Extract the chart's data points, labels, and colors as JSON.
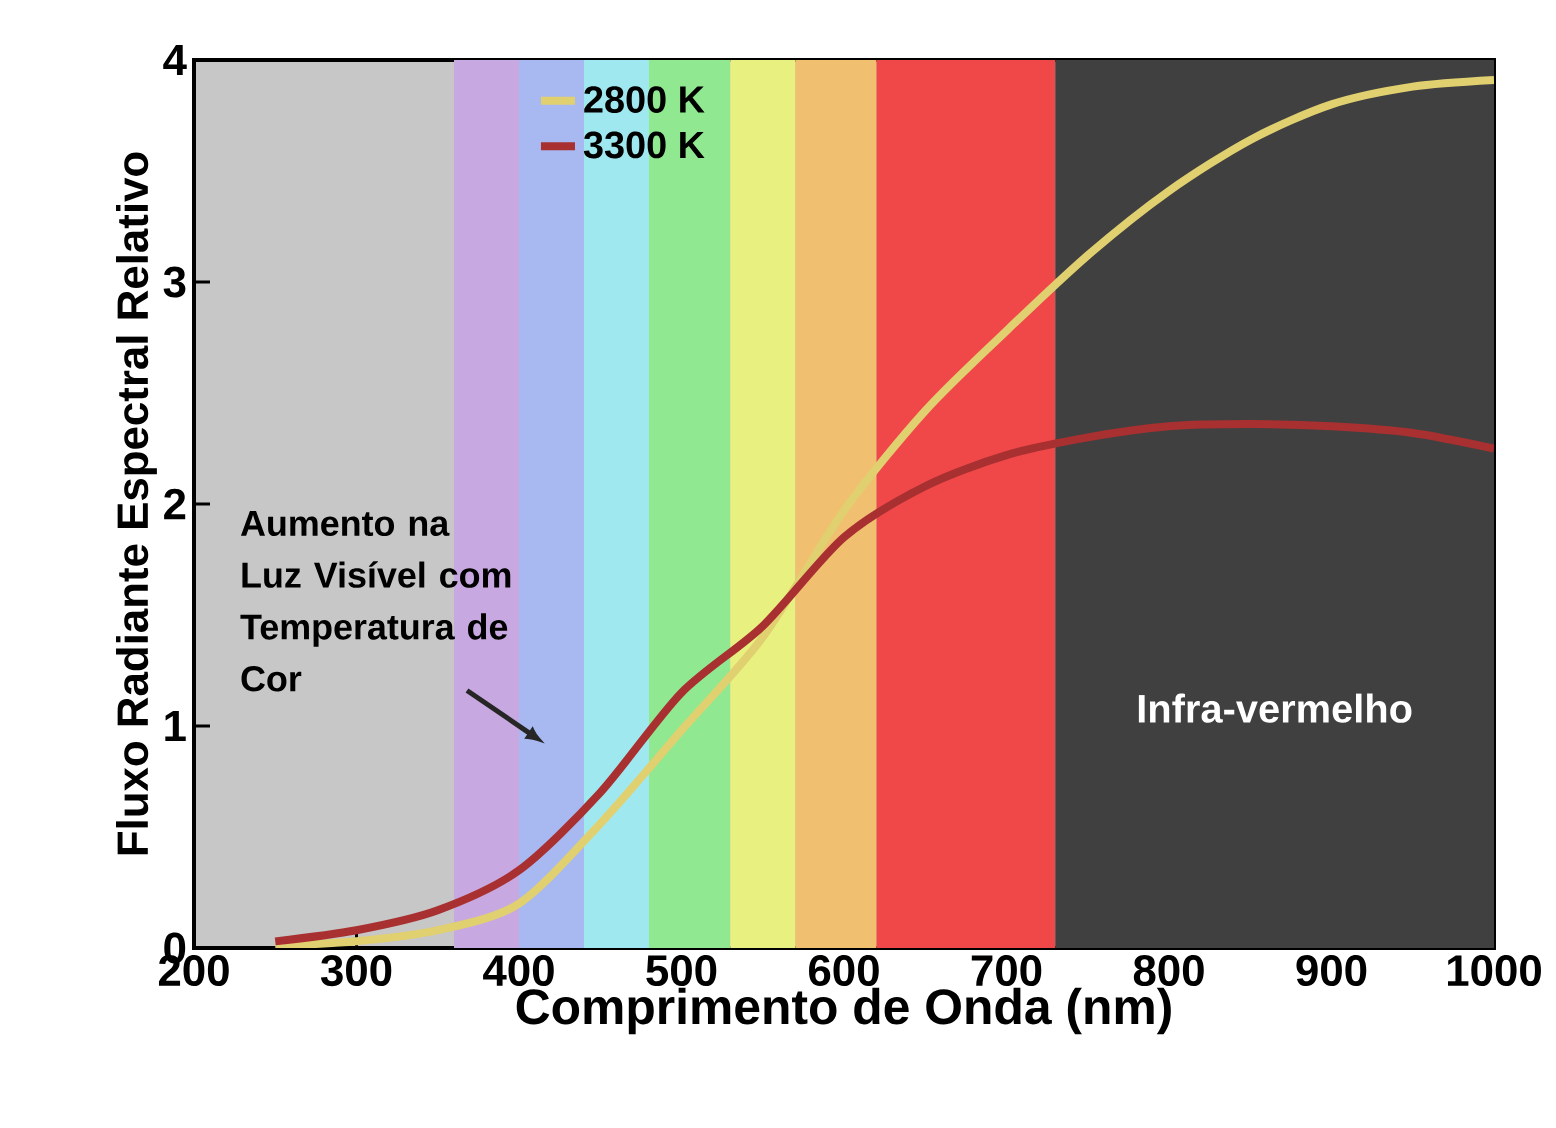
{
  "chart_data": {
    "type": "line",
    "xlabel": "Comprimento de Onda (nm)",
    "ylabel": "Fluxo Radiante Espectral Relativo",
    "x": [
      250,
      300,
      350,
      400,
      450,
      500,
      550,
      600,
      650,
      700,
      750,
      800,
      850,
      900,
      950,
      1000
    ],
    "series": [
      {
        "name": "2800 K",
        "color": "#e0d070",
        "values": [
          0.01,
          0.03,
          0.08,
          0.2,
          0.56,
          0.98,
          1.4,
          1.97,
          2.42,
          2.78,
          3.12,
          3.41,
          3.64,
          3.8,
          3.88,
          3.91
        ]
      },
      {
        "name": "3300 K",
        "color": "#a83030",
        "values": [
          0.03,
          0.08,
          0.17,
          0.35,
          0.7,
          1.15,
          1.45,
          1.85,
          2.08,
          2.22,
          2.3,
          2.35,
          2.36,
          2.35,
          2.32,
          2.25
        ]
      }
    ],
    "bands": [
      {
        "axis": "x",
        "from": 360,
        "to": 400,
        "color": "#c8a8e0"
      },
      {
        "axis": "x",
        "from": 400,
        "to": 440,
        "color": "#a8b8f0"
      },
      {
        "axis": "x",
        "from": 440,
        "to": 480,
        "color": "#a0e8f0"
      },
      {
        "axis": "x",
        "from": 480,
        "to": 530,
        "color": "#90e890"
      },
      {
        "axis": "x",
        "from": 530,
        "to": 570,
        "color": "#e8f080"
      },
      {
        "axis": "x",
        "from": 570,
        "to": 620,
        "color": "#f0c070"
      },
      {
        "axis": "x",
        "from": 620,
        "to": 730,
        "color": "#f04848"
      },
      {
        "axis": "x",
        "from": 730,
        "to": 1000,
        "color": "#404040",
        "label": "Infra-vermelho"
      }
    ],
    "annotations": [
      "Aumento na Luz Visível com Temperatura de Cor"
    ],
    "xlim": [
      200,
      1000
    ],
    "ylim": [
      0,
      4
    ],
    "xticks": [
      200,
      300,
      400,
      500,
      600,
      700,
      800,
      900,
      1000
    ],
    "yticks": [
      0,
      1,
      2,
      3,
      4
    ],
    "legend": "top",
    "marker": "none",
    "line_style": "solid",
    "grid": false
  }
}
